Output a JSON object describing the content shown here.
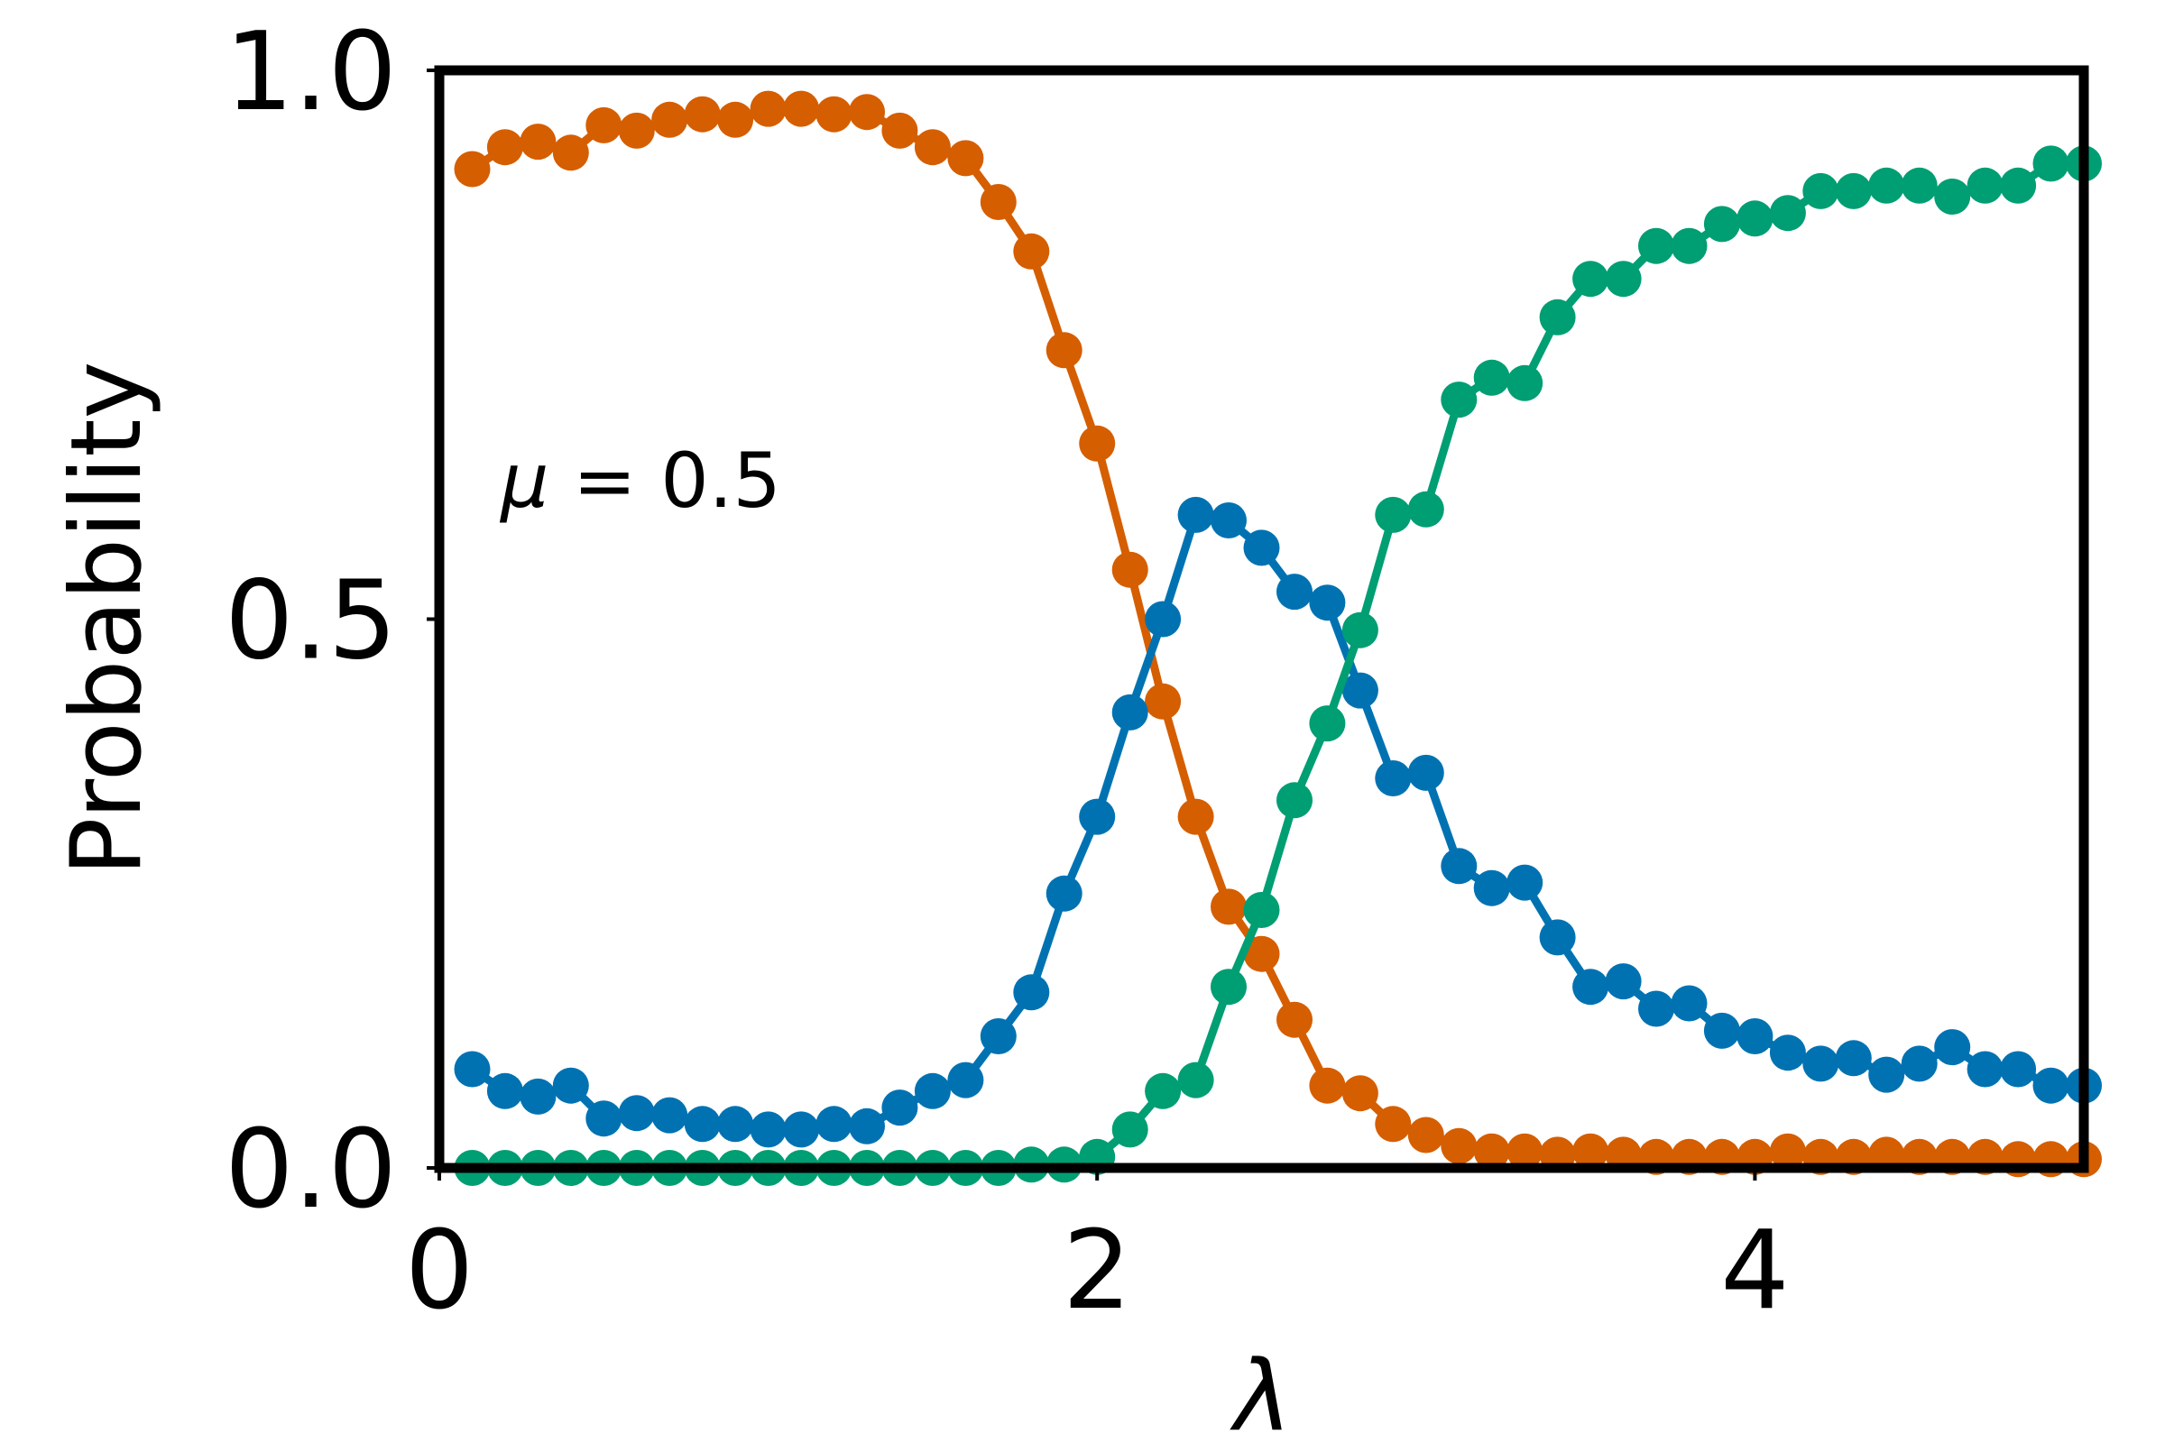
{
  "chart_data": {
    "type": "line",
    "xlabel": "λ",
    "ylabel": "Probability",
    "xlim": [
      0,
      5
    ],
    "ylim": [
      0,
      1
    ],
    "x_ticks": [
      0,
      2,
      4
    ],
    "x_tick_labels": [
      "0",
      "2",
      "4"
    ],
    "y_ticks": [
      0.0,
      0.5,
      1.0
    ],
    "y_tick_labels": [
      "0.0",
      "0.5",
      "1.0"
    ],
    "annotation": {
      "symbol": "μ",
      "text": " = 0.5"
    },
    "grid": false,
    "legend": "none",
    "markers": true,
    "x": [
      0.1,
      0.2,
      0.3,
      0.4,
      0.5,
      0.6,
      0.7,
      0.8,
      0.9,
      1.0,
      1.1,
      1.2,
      1.3,
      1.4,
      1.5,
      1.6,
      1.7,
      1.8,
      1.9,
      2.0,
      2.1,
      2.2,
      2.3,
      2.4,
      2.5,
      2.6,
      2.7,
      2.8,
      2.9,
      3.0,
      3.1,
      3.2,
      3.3,
      3.4,
      3.5,
      3.6,
      3.7,
      3.8,
      3.9,
      4.0,
      4.1,
      4.2,
      4.3,
      4.4,
      4.5,
      4.6,
      4.7,
      4.8,
      4.9,
      5.0
    ],
    "series": [
      {
        "color": "#d55e00",
        "values": [
          0.91,
          0.93,
          0.935,
          0.925,
          0.95,
          0.945,
          0.955,
          0.96,
          0.955,
          0.965,
          0.965,
          0.96,
          0.962,
          0.945,
          0.93,
          0.92,
          0.88,
          0.835,
          0.745,
          0.66,
          0.545,
          0.425,
          0.32,
          0.238,
          0.195,
          0.135,
          0.075,
          0.068,
          0.04,
          0.03,
          0.02,
          0.015,
          0.015,
          0.012,
          0.015,
          0.012,
          0.01,
          0.01,
          0.01,
          0.01,
          0.015,
          0.01,
          0.01,
          0.012,
          0.01,
          0.01,
          0.01,
          0.008,
          0.008,
          0.008
        ]
      },
      {
        "color": "#0072b2",
        "values": [
          0.09,
          0.07,
          0.065,
          0.075,
          0.045,
          0.05,
          0.048,
          0.04,
          0.04,
          0.035,
          0.035,
          0.04,
          0.038,
          0.055,
          0.07,
          0.08,
          0.12,
          0.16,
          0.25,
          0.32,
          0.415,
          0.5,
          0.595,
          0.59,
          0.565,
          0.525,
          0.515,
          0.435,
          0.355,
          0.36,
          0.275,
          0.255,
          0.26,
          0.21,
          0.165,
          0.17,
          0.145,
          0.15,
          0.125,
          0.12,
          0.105,
          0.095,
          0.1,
          0.085,
          0.095,
          0.11,
          0.09,
          0.09,
          0.075,
          0.075
        ]
      },
      {
        "color": "#009e73",
        "values": [
          0.0,
          0.0,
          0.0,
          0.0,
          0.0,
          0.0,
          0.0,
          0.0,
          0.0,
          0.0,
          0.0,
          0.0,
          0.0,
          0.0,
          0.0,
          0.0,
          0.0,
          0.003,
          0.003,
          0.01,
          0.035,
          0.07,
          0.08,
          0.165,
          0.235,
          0.335,
          0.405,
          0.49,
          0.595,
          0.6,
          0.7,
          0.72,
          0.715,
          0.775,
          0.81,
          0.81,
          0.84,
          0.84,
          0.86,
          0.865,
          0.87,
          0.89,
          0.89,
          0.895,
          0.895,
          0.885,
          0.895,
          0.895,
          0.915,
          0.915
        ]
      }
    ]
  }
}
